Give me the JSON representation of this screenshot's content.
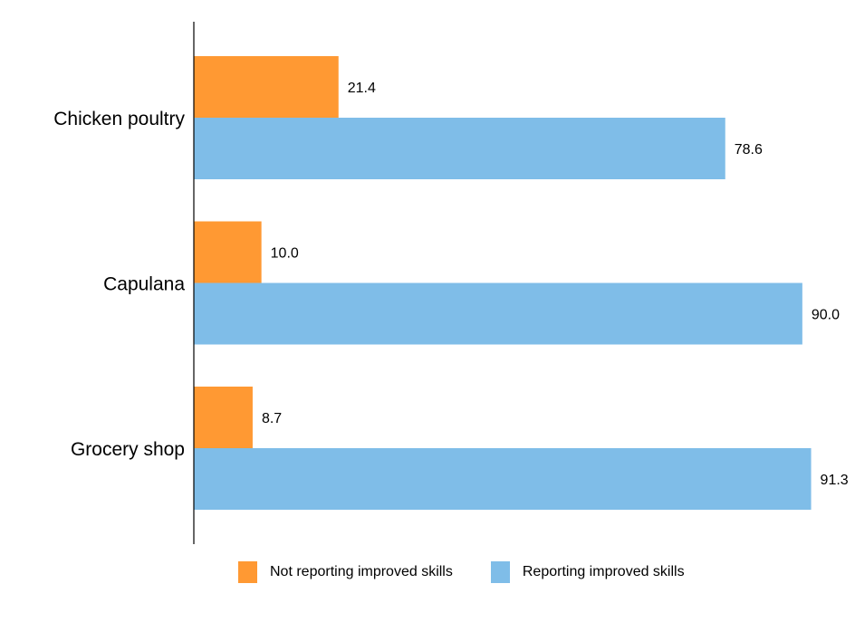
{
  "chart_data": {
    "type": "bar",
    "orientation": "horizontal",
    "title": "",
    "xlabel": "",
    "ylabel": "",
    "xlim": [
      0,
      92
    ],
    "grid": false,
    "legend_position": "bottom",
    "categories": [
      "Chicken poultry",
      "Capulana",
      "Grocery shop"
    ],
    "series": [
      {
        "name": "Not reporting improved skills",
        "color": "#FF9933",
        "values": [
          21.4,
          10.0,
          8.7
        ],
        "labels": [
          "21.4",
          "10.0",
          "8.7"
        ]
      },
      {
        "name": "Reporting improved skills",
        "color": "#7FBDE8",
        "values": [
          78.6,
          90.0,
          91.3
        ],
        "labels": [
          "78.6",
          "90.0",
          "91.3"
        ]
      }
    ]
  }
}
